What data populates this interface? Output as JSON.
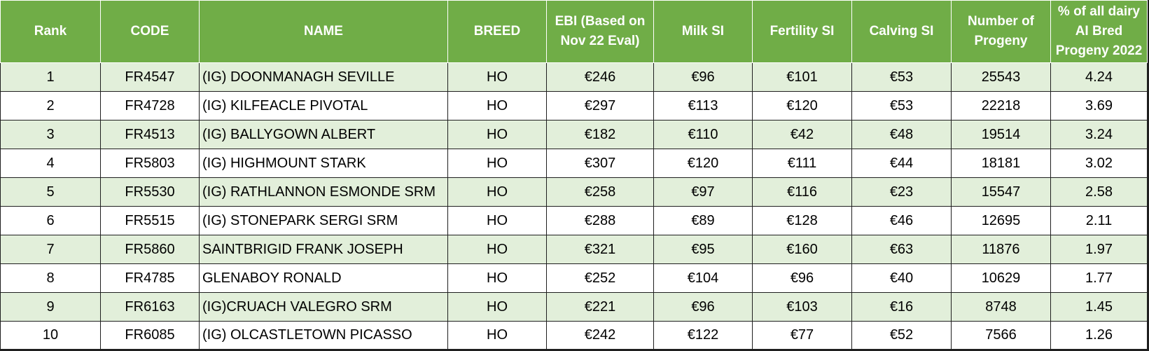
{
  "table": {
    "headers": [
      "Rank",
      "CODE",
      "NAME",
      "BREED",
      "EBI (Based on Nov 22 Eval)",
      "Milk SI",
      "Fertility SI",
      "Calving SI",
      "Number of Progeny",
      "% of all dairy AI Bred Progeny 2022"
    ],
    "rows": [
      {
        "rank": "1",
        "code": "FR4547",
        "name": "(IG) DOONMANAGH SEVILLE",
        "breed": "HO",
        "ebi": "€246",
        "milk": "€96",
        "fertility": "€101",
        "calving": "€53",
        "progeny": "25543",
        "percent": "4.24"
      },
      {
        "rank": "2",
        "code": "FR4728",
        "name": "(IG) KILFEACLE PIVOTAL",
        "breed": "HO",
        "ebi": "€297",
        "milk": "€113",
        "fertility": "€120",
        "calving": "€53",
        "progeny": "22218",
        "percent": "3.69"
      },
      {
        "rank": "3",
        "code": "FR4513",
        "name": "(IG) BALLYGOWN ALBERT",
        "breed": "HO",
        "ebi": "€182",
        "milk": "€110",
        "fertility": "€42",
        "calving": "€48",
        "progeny": "19514",
        "percent": "3.24"
      },
      {
        "rank": "4",
        "code": "FR5803",
        "name": "(IG) HIGHMOUNT STARK",
        "breed": "HO",
        "ebi": "€307",
        "milk": "€120",
        "fertility": "€111",
        "calving": "€44",
        "progeny": "18181",
        "percent": "3.02"
      },
      {
        "rank": "5",
        "code": "FR5530",
        "name": "(IG) RATHLANNON ESMONDE SRM",
        "breed": "HO",
        "ebi": "€258",
        "milk": "€97",
        "fertility": "€116",
        "calving": "€23",
        "progeny": "15547",
        "percent": "2.58"
      },
      {
        "rank": "6",
        "code": "FR5515",
        "name": "(IG) STONEPARK SERGI SRM",
        "breed": "HO",
        "ebi": "€288",
        "milk": "€89",
        "fertility": "€128",
        "calving": "€46",
        "progeny": "12695",
        "percent": "2.11"
      },
      {
        "rank": "7",
        "code": "FR5860",
        "name": "SAINTBRIGID FRANK JOSEPH",
        "breed": "HO",
        "ebi": "€321",
        "milk": "€95",
        "fertility": "€160",
        "calving": "€63",
        "progeny": "11876",
        "percent": "1.97"
      },
      {
        "rank": "8",
        "code": "FR4785",
        "name": "GLENABOY RONALD",
        "breed": "HO",
        "ebi": "€252",
        "milk": "€104",
        "fertility": "€96",
        "calving": "€40",
        "progeny": "10629",
        "percent": "1.77"
      },
      {
        "rank": "9",
        "code": "FR6163",
        "name": "(IG)CRUACH VALEGRO SRM",
        "breed": "HO",
        "ebi": "€221",
        "milk": "€96",
        "fertility": "€103",
        "calving": "€16",
        "progeny": "8748",
        "percent": "1.45"
      },
      {
        "rank": "10",
        "code": "FR6085",
        "name": "(IG) OLCASTLETOWN PICASSO",
        "breed": "HO",
        "ebi": "€242",
        "milk": "€122",
        "fertility": "€77",
        "calving": "€52",
        "progeny": "7566",
        "percent": "1.26"
      }
    ]
  },
  "colors": {
    "header_bg": "#70ad47",
    "header_text": "#ffffff",
    "band_bg": "#e2efda",
    "plain_bg": "#ffffff"
  }
}
